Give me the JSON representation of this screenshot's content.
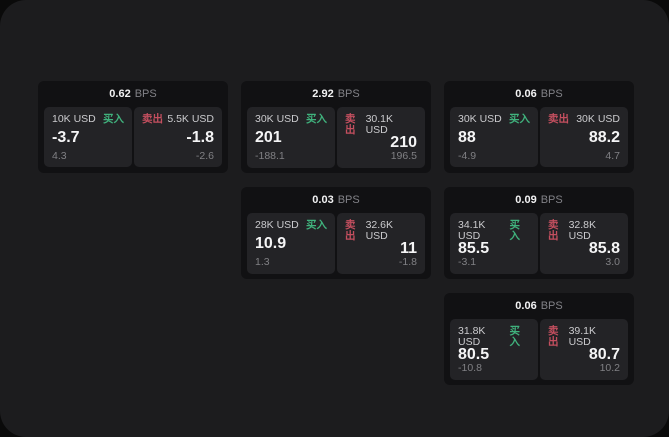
{
  "labels": {
    "bps_unit": "BPS",
    "buy": "买入",
    "sell": "卖出"
  },
  "colors": {
    "page_bg": "#1c1c1e",
    "card_bg": "#111113",
    "panel_bg": "#232326",
    "buy_green": "#40b27d",
    "sell_red": "#c44f5f",
    "value_white": "#f5f5f6",
    "dim_gray": "#808084"
  },
  "cards": [
    {
      "bps": "0.62",
      "buy": {
        "amount": "10K USD",
        "price": "-3.7",
        "delta": "4.3"
      },
      "sell": {
        "amount": "5.5K USD",
        "price": "-1.8",
        "delta": "-2.6"
      }
    },
    {
      "bps": "2.92",
      "buy": {
        "amount": "30K USD",
        "price": "201",
        "delta": "-188.1"
      },
      "sell": {
        "amount": "30.1K USD",
        "price": "210",
        "delta": "196.5"
      }
    },
    {
      "bps": "0.06",
      "buy": {
        "amount": "30K USD",
        "price": "88",
        "delta": "-4.9"
      },
      "sell": {
        "amount": "30K USD",
        "price": "88.2",
        "delta": "4.7"
      }
    },
    {
      "bps": "0.03",
      "buy": {
        "amount": "28K USD",
        "price": "10.9",
        "delta": "1.3"
      },
      "sell": {
        "amount": "32.6K USD",
        "price": "11",
        "delta": "-1.8"
      }
    },
    {
      "bps": "0.09",
      "buy": {
        "amount": "34.1K USD",
        "price": "85.5",
        "delta": "-3.1"
      },
      "sell": {
        "amount": "32.8K USD",
        "price": "85.8",
        "delta": "3.0"
      }
    },
    {
      "bps": "0.06",
      "buy": {
        "amount": "31.8K USD",
        "price": "80.5",
        "delta": "-10.8"
      },
      "sell": {
        "amount": "39.1K USD",
        "price": "80.7",
        "delta": "10.2"
      }
    }
  ]
}
